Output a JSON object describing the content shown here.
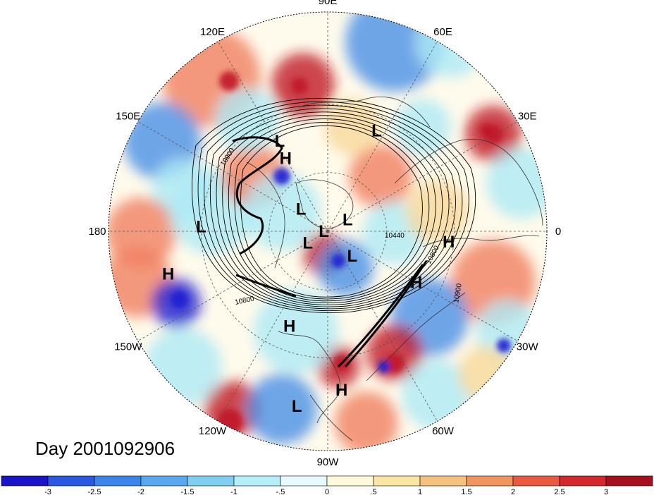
{
  "map": {
    "projection": "north-polar-stereographic",
    "title": "Day 2001092906",
    "longitude_labels": [
      {
        "text": "90E",
        "lon": 90
      },
      {
        "text": "60E",
        "lon": 60
      },
      {
        "text": "120E",
        "lon": 120
      },
      {
        "text": "30E",
        "lon": 30
      },
      {
        "text": "150E",
        "lon": 150
      },
      {
        "text": "180",
        "lon": 180
      },
      {
        "text": "0",
        "lon": 0
      },
      {
        "text": "150W",
        "lon": -150
      },
      {
        "text": "30W",
        "lon": -30
      },
      {
        "text": "120W",
        "lon": -120
      },
      {
        "text": "60W",
        "lon": -60
      },
      {
        "text": "90W",
        "lon": -90
      }
    ],
    "pressure_centers": [
      {
        "type": "L",
        "lon": 64,
        "lat": 36
      },
      {
        "type": "L",
        "lon": 118,
        "lat": 40
      },
      {
        "type": "H",
        "lon": 120,
        "lat": 48
      },
      {
        "type": "L",
        "lon": 140,
        "lat": 72
      },
      {
        "type": "L",
        "lon": 30,
        "lat": 78
      },
      {
        "type": "L",
        "lon": 180,
        "lat": 88
      },
      {
        "type": "L",
        "lon": 178,
        "lat": 30
      },
      {
        "type": "L",
        "lon": -150,
        "lat": 78
      },
      {
        "type": "H",
        "lon": -165,
        "lat": 16
      },
      {
        "type": "L",
        "lon": -45,
        "lat": 72
      },
      {
        "type": "H",
        "lon": -5,
        "lat": 32
      },
      {
        "type": "H",
        "lon": -30,
        "lat": 40
      },
      {
        "type": "H",
        "lon": -112,
        "lat": 40
      },
      {
        "type": "L",
        "lon": -100,
        "lat": 12
      },
      {
        "type": "H",
        "lon": -85,
        "lat": 18
      }
    ],
    "contour_labels": [
      "10900",
      "10800",
      "10440",
      "10800",
      "10900"
    ],
    "colors": {
      "negative_strong": "#1f1fd0",
      "negative_mid": "#4a90e6",
      "negative_light": "#aeeaf5",
      "neutral": "#ffffff",
      "positive_light": "#f7d89a",
      "positive_mid": "#f08060",
      "positive_strong": "#c01828"
    }
  },
  "colorbar": {
    "colors": [
      "#1a14c8",
      "#2a58e0",
      "#3c86ea",
      "#5aa8ef",
      "#80cff2",
      "#b4eff7",
      "#e6fbff",
      "#fff9dc",
      "#fbe5a3",
      "#f6c07e",
      "#f09460",
      "#ea5a42",
      "#d5282c",
      "#a6101e"
    ],
    "tick_labels": [
      "-3",
      "-2.5",
      "-2",
      "-1.5",
      "-1",
      "-.5",
      "0",
      ".5",
      "1",
      "1.5",
      "2",
      "2.5",
      "3"
    ]
  }
}
